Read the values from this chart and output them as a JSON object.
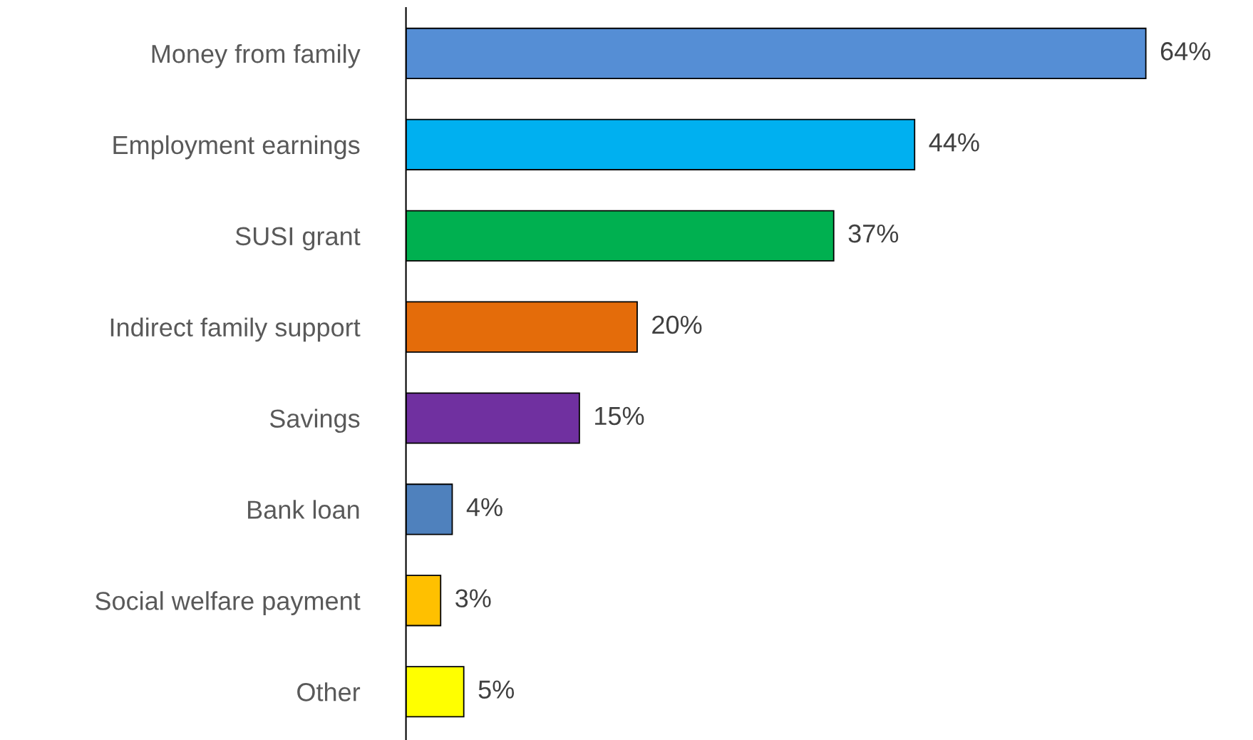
{
  "chart_data": {
    "type": "bar",
    "orientation": "horizontal",
    "categories": [
      "Money from family",
      "Employment earnings",
      "SUSI grant",
      "Indirect family support",
      "Savings",
      "Bank loan",
      "Social welfare payment",
      "Other"
    ],
    "values": [
      64,
      44,
      37,
      20,
      15,
      4,
      3,
      5
    ],
    "colors": [
      "#558ed5",
      "#00b0f0",
      "#00b050",
      "#e46c0a",
      "#7030a0",
      "#4f81bd",
      "#ffc000",
      "#ffff00"
    ],
    "value_labels": [
      "64%",
      "44%",
      "37%",
      "20%",
      "15%",
      "4%",
      "3%",
      "5%"
    ],
    "tick_labels": "y",
    "grid": false,
    "legend": false
  }
}
